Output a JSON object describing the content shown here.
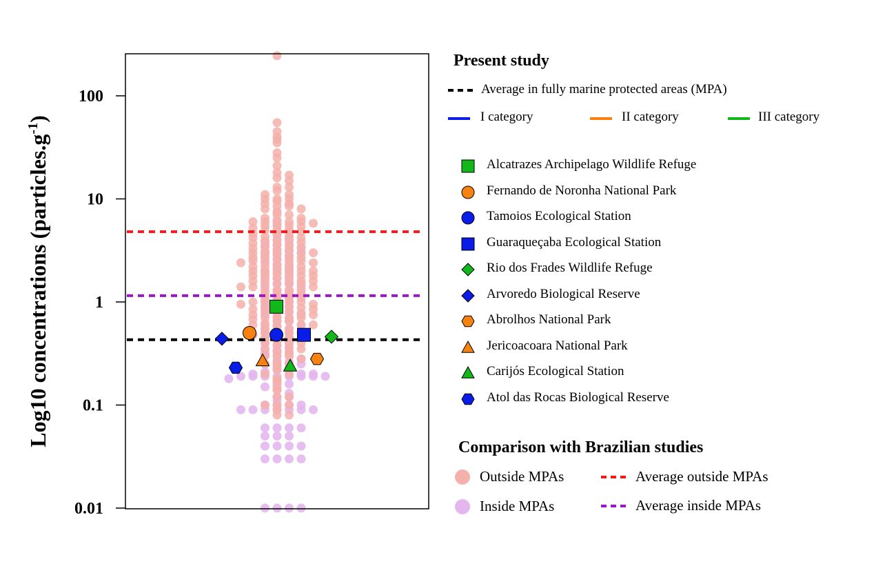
{
  "chart_data": {
    "type": "scatter",
    "title": "",
    "xlabel": "",
    "ylabel": "Log10 concentrations (particles.g",
    "ylabel_superscript": "-1",
    "ylabel_suffix": ")",
    "yscale": "log",
    "ylim": [
      0.01,
      250
    ],
    "yticks": [
      0.01,
      0.1,
      1,
      10,
      100
    ],
    "ytick_labels": [
      "0.01",
      "0.1",
      "1",
      "10",
      "100"
    ],
    "grid": false,
    "colors": {
      "outside": "#f4b0aa",
      "inside": "#e3b7ee",
      "avg_outside": "#ee1c1c",
      "avg_inside": "#9b17c9",
      "avg_mpa": "#000000",
      "cat_I": "#0a1de8",
      "cat_II": "#f7820f",
      "cat_III": "#12b81a"
    },
    "reference_lines": [
      {
        "name": "Average in fully marine protected areas (MPA)",
        "y": 0.43,
        "color": "#000000"
      },
      {
        "name": "Average outside MPAs",
        "y": 4.8,
        "color": "#ee1c1c"
      },
      {
        "name": "Average inside MPAs",
        "y": 1.15,
        "color": "#9b17c9"
      }
    ],
    "series": [
      {
        "name": "Alcatrazes Archipelago Wildlife Refuge",
        "category": "III",
        "marker": "square",
        "y": 0.9
      },
      {
        "name": "Fernando de Noronha National Park",
        "category": "II",
        "marker": "circle",
        "y": 0.5
      },
      {
        "name": "Tamoios Ecological Station",
        "category": "I",
        "marker": "circle",
        "y": 0.48
      },
      {
        "name": "Guaraqueçaba Ecological Station",
        "category": "I",
        "marker": "square",
        "y": 0.48
      },
      {
        "name": "Rio dos Frades Wildlife Refuge",
        "category": "III",
        "marker": "diamond",
        "y": 0.46
      },
      {
        "name": "Arvoredo Biological Reserve",
        "category": "I",
        "marker": "diamond",
        "y": 0.44
      },
      {
        "name": "Abrolhos National Park",
        "category": "II",
        "marker": "hexagon",
        "y": 0.28
      },
      {
        "name": "Jericoacoara National Park",
        "category": "II",
        "marker": "triangle",
        "y": 0.27
      },
      {
        "name": "Carijós Ecological Station",
        "category": "III",
        "marker": "triangle",
        "y": 0.24
      },
      {
        "name": "Atol das Rocas Biological Reserve",
        "category": "I",
        "marker": "hexagon",
        "y": 0.23
      }
    ],
    "outside_values": [
      245,
      55,
      45,
      40,
      38,
      35,
      28,
      25,
      21,
      18,
      17,
      16,
      15,
      13,
      13,
      12,
      11,
      11,
      10,
      10,
      10,
      9.5,
      9,
      9,
      8.5,
      8.5,
      8,
      8,
      7.5,
      7,
      7,
      6.5,
      6.5,
      6.2,
      6,
      6,
      6,
      6,
      5.8,
      5.6,
      5.5,
      5.5,
      5.4,
      5.2,
      5,
      5,
      5,
      4.8,
      4.6,
      4.5,
      4.4,
      4.3,
      4.2,
      4.2,
      4,
      4,
      3.9,
      3.8,
      3.7,
      3.6,
      3.5,
      3.5,
      3.4,
      3.3,
      3.2,
      3.2,
      3.1,
      3,
      3,
      3,
      2.9,
      2.8,
      2.8,
      2.7,
      2.7,
      2.6,
      2.6,
      2.5,
      2.5,
      2.5,
      2.4,
      2.4,
      2.3,
      2.3,
      2.2,
      2.2,
      2.2,
      2.1,
      2.1,
      2,
      2,
      2,
      2,
      1.9,
      1.9,
      1.9,
      1.8,
      1.8,
      1.8,
      1.7,
      1.7,
      1.7,
      1.6,
      1.6,
      1.6,
      1.5,
      1.5,
      1.5,
      1.5,
      1.4,
      1.4,
      1.4,
      1.3,
      1.3,
      1.3,
      1.3,
      1.2,
      1.2,
      1.2,
      1.2,
      1.1,
      1.1,
      1.1,
      1.1,
      1,
      1,
      1,
      1,
      1,
      0.95,
      0.95,
      0.9,
      0.9,
      0.9,
      0.88,
      0.85,
      0.85,
      0.8,
      0.8,
      0.8,
      0.78,
      0.75,
      0.75,
      0.72,
      0.7,
      0.7,
      0.7,
      0.68,
      0.65,
      0.65,
      0.62,
      0.6,
      0.6,
      0.6,
      0.58,
      0.55,
      0.55,
      0.52,
      0.5,
      0.5,
      0.5,
      0.48,
      0.46,
      0.45,
      0.45,
      0.42,
      0.4,
      0.4,
      0.4,
      0.38,
      0.36,
      0.35,
      0.35,
      0.33,
      0.32,
      0.3,
      0.3,
      0.3,
      0.28,
      0.26,
      0.25,
      0.25,
      0.24,
      0.22,
      0.2,
      0.2,
      0.18,
      0.17,
      0.15,
      0.14,
      0.12,
      0.12,
      0.1,
      0.1,
      0.1,
      0.09,
      0.08,
      0.08
    ],
    "inside_values": [
      7.5,
      6,
      5.5,
      5,
      4.8,
      4.5,
      4.2,
      4,
      3.8,
      3.8,
      3.6,
      3.5,
      3.4,
      3.3,
      3.2,
      3.1,
      3,
      3,
      2.9,
      2.8,
      2.7,
      2.6,
      2.5,
      2.4,
      2.3,
      2.2,
      2.1,
      2,
      2,
      1.9,
      1.8,
      1.8,
      1.7,
      1.6,
      1.6,
      1.5,
      1.5,
      1.4,
      1.4,
      1.3,
      1.3,
      1.2,
      1.2,
      1.1,
      1.1,
      1.05,
      1,
      1,
      0.95,
      0.9,
      0.9,
      0.85,
      0.8,
      0.8,
      0.75,
      0.75,
      0.7,
      0.7,
      0.65,
      0.65,
      0.6,
      0.6,
      0.58,
      0.55,
      0.55,
      0.52,
      0.5,
      0.5,
      0.5,
      0.48,
      0.46,
      0.45,
      0.44,
      0.42,
      0.4,
      0.4,
      0.38,
      0.36,
      0.35,
      0.34,
      0.33,
      0.32,
      0.3,
      0.3,
      0.3,
      0.28,
      0.27,
      0.26,
      0.25,
      0.25,
      0.24,
      0.23,
      0.22,
      0.22,
      0.21,
      0.2,
      0.2,
      0.2,
      0.19,
      0.19,
      0.19,
      0.19,
      0.19,
      0.19,
      0.19,
      0.19,
      0.18,
      0.17,
      0.16,
      0.16,
      0.15,
      0.14,
      0.13,
      0.12,
      0.12,
      0.11,
      0.1,
      0.1,
      0.1,
      0.1,
      0.09,
      0.09,
      0.09,
      0.09,
      0.09,
      0.09,
      0.09,
      0.06,
      0.06,
      0.06,
      0.06,
      0.05,
      0.05,
      0.05,
      0.04,
      0.04,
      0.04,
      0.04,
      0.03,
      0.03,
      0.03,
      0.03,
      0.01,
      0.01,
      0.01,
      0.01
    ]
  },
  "legend": {
    "present_title": "Present study",
    "avg_mpa_label": "Average in fully marine protected areas (MPA)",
    "cat_I_label": "I category",
    "cat_II_label": "II category",
    "cat_III_label": "III category",
    "comparison_title": "Comparison with Brazilian studies",
    "outside_label": "Outside MPAs",
    "inside_label": "Inside MPAs",
    "avg_outside_label": "Average outside MPAs",
    "avg_inside_label": "Average inside MPAs"
  }
}
